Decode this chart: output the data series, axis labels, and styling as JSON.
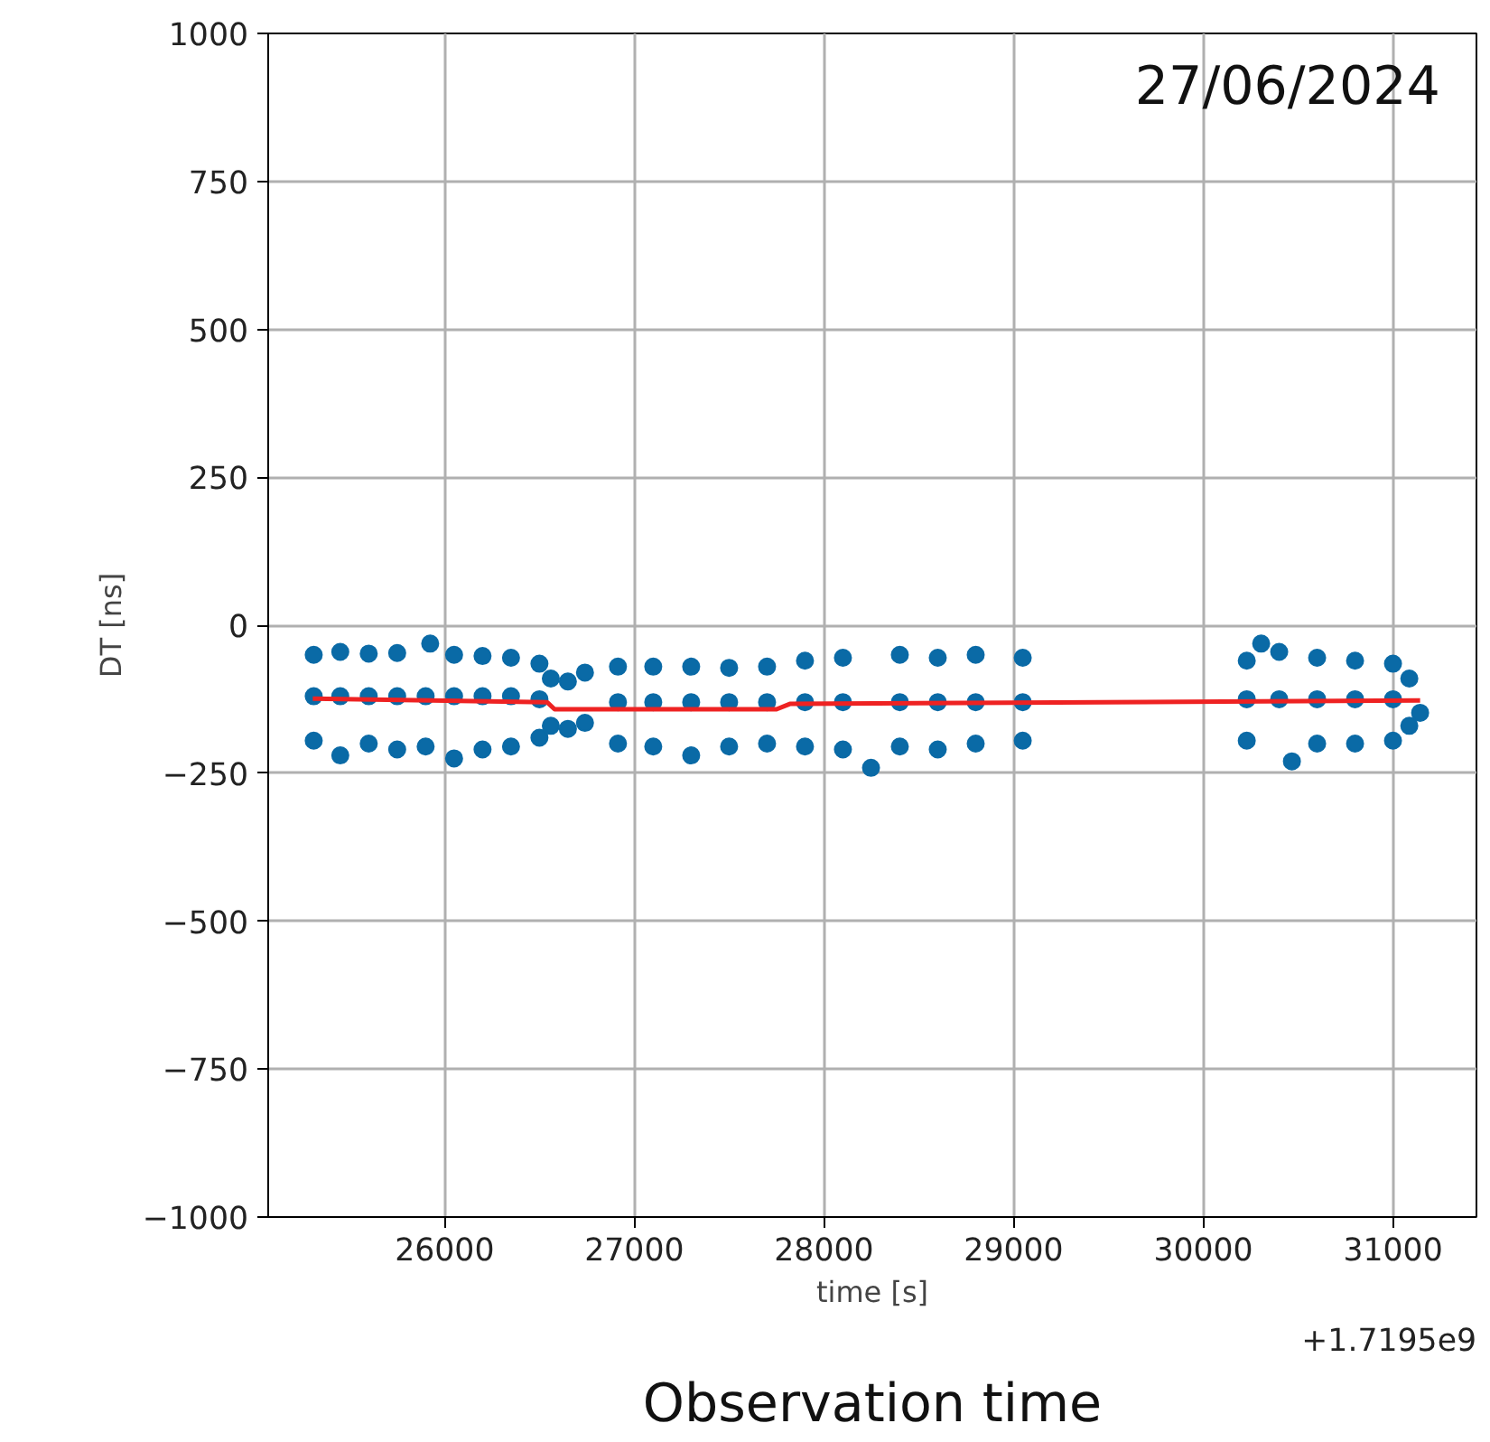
{
  "chart_data": {
    "type": "scatter",
    "xlabel": "time [s]",
    "ylabel": "DT [ns]",
    "annotations": [
      "27/06/2024",
      "+1.7195e9",
      "Observation time"
    ],
    "xlim": [
      25070,
      31440
    ],
    "ylim": [
      -1000,
      1000
    ],
    "xticks": [
      26000,
      27000,
      28000,
      29000,
      30000,
      31000
    ],
    "yticks": [
      -1000,
      -750,
      -500,
      -250,
      0,
      250,
      500,
      750,
      1000
    ],
    "grid": true,
    "marker": "circle",
    "series": [
      {
        "color": "#0a6aa6",
        "x": [
          25310,
          25310,
          25310,
          25450,
          25450,
          25450,
          25600,
          25600,
          25600,
          25750,
          25750,
          25750,
          25924,
          25900,
          25900,
          26050,
          26050,
          26050,
          26200,
          26200,
          26200,
          26350,
          26350,
          26350,
          26500,
          26500,
          26500,
          26560,
          26560,
          26650,
          26650,
          26740,
          26740,
          26914,
          26914,
          26914,
          27100,
          27100,
          27100,
          27300,
          27300,
          27300,
          27500,
          27500,
          27500,
          27700,
          27700,
          27700,
          27900,
          27900,
          27900,
          28100,
          28100,
          28100,
          28248,
          28400,
          28400,
          28400,
          28600,
          28600,
          28600,
          28800,
          28800,
          28800,
          29048,
          29048,
          29048,
          30229,
          30229,
          30229,
          30305,
          30400,
          30400,
          30467,
          30600,
          30600,
          30600,
          30800,
          30800,
          30800,
          31000,
          31000,
          31000,
          31086,
          31086,
          31143
        ],
        "values": [
          -50,
          -120,
          -195,
          -45,
          -120,
          -220,
          -48,
          -120,
          -200,
          -47,
          -120,
          -210,
          -31,
          -120,
          -205,
          -50,
          -120,
          -225,
          -52,
          -120,
          -210,
          -55,
          -120,
          -205,
          -65,
          -125,
          -190,
          -90,
          -170,
          -95,
          -175,
          -80,
          -165,
          -70,
          -130,
          -200,
          -70,
          -130,
          -205,
          -70,
          -130,
          -220,
          -72,
          -130,
          -205,
          -70,
          -130,
          -200,
          -60,
          -130,
          -205,
          -55,
          -130,
          -210,
          -241,
          -50,
          -130,
          -205,
          -55,
          -130,
          -210,
          -50,
          -130,
          -200,
          -55,
          -130,
          -195,
          -60,
          -125,
          -195,
          -31,
          -45,
          -125,
          -230,
          -55,
          -125,
          -200,
          -60,
          -125,
          -200,
          -65,
          -125,
          -195,
          -90,
          -170,
          -148
        ]
      },
      {
        "type": "line",
        "marker": "none",
        "color": "#ee2222",
        "x": [
          25305,
          26540,
          26580,
          27750,
          27820,
          31143
        ],
        "values": [
          -124,
          -130,
          -142,
          -142,
          -133,
          -127
        ]
      }
    ]
  }
}
